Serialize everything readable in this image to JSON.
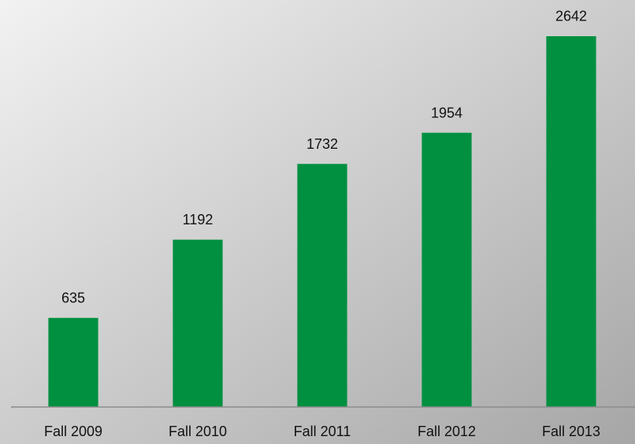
{
  "chart_data": {
    "type": "bar",
    "categories": [
      "Fall 2009",
      "Fall 2010",
      "Fall 2011",
      "Fall 2012",
      "Fall 2013"
    ],
    "values": [
      635,
      1192,
      1732,
      1954,
      2642
    ],
    "color": "#009040",
    "ylim": [
      0,
      2900
    ]
  }
}
